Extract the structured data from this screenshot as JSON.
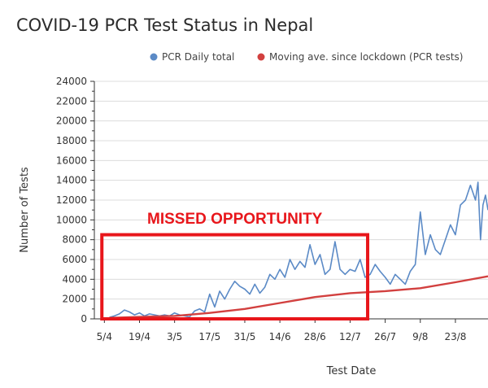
{
  "colors": {
    "daily": "#5b8ac6",
    "moving": "#d2403f",
    "annotation": "#e8161b",
    "grid": "#dcdcdc",
    "axis": "#333333"
  },
  "chart_data": {
    "type": "line",
    "title": "COVID-19 PCR Test Status in Nepal",
    "xlabel": "Test Date",
    "ylabel": "Number of Tests",
    "ylim": [
      0,
      24000
    ],
    "xlim": [
      "2020-04-01",
      "2020-09-05"
    ],
    "grid": true,
    "legend_position": "top-right",
    "yticks": [
      "0",
      "2000",
      "4000",
      "6000",
      "8000",
      "10000",
      "12000",
      "14000",
      "16000",
      "18000",
      "20000",
      "22000",
      "24000"
    ],
    "xtick_dates": [
      "2020-04-05",
      "2020-04-19",
      "2020-05-03",
      "2020-05-17",
      "2020-05-31",
      "2020-06-14",
      "2020-06-28",
      "2020-07-12",
      "2020-07-26",
      "2020-08-09",
      "2020-08-23"
    ],
    "xtick_labels": [
      "5/4",
      "19/4",
      "3/5",
      "17/5",
      "31/5",
      "14/6",
      "28/6",
      "12/7",
      "26/7",
      "9/8",
      "23/8"
    ],
    "series": [
      {
        "name": "PCR Daily total",
        "points": [
          [
            "2020-04-07",
            150
          ],
          [
            "2020-04-09",
            300
          ],
          [
            "2020-04-11",
            500
          ],
          [
            "2020-04-13",
            900
          ],
          [
            "2020-04-15",
            700
          ],
          [
            "2020-04-17",
            400
          ],
          [
            "2020-04-19",
            600
          ],
          [
            "2020-04-21",
            300
          ],
          [
            "2020-04-23",
            500
          ],
          [
            "2020-04-25",
            400
          ],
          [
            "2020-04-27",
            300
          ],
          [
            "2020-04-29",
            400
          ],
          [
            "2020-05-01",
            300
          ],
          [
            "2020-05-03",
            600
          ],
          [
            "2020-05-05",
            400
          ],
          [
            "2020-05-07",
            300
          ],
          [
            "2020-05-09",
            200
          ],
          [
            "2020-05-11",
            800
          ],
          [
            "2020-05-13",
            1000
          ],
          [
            "2020-05-15",
            700
          ],
          [
            "2020-05-17",
            2500
          ],
          [
            "2020-05-19",
            1200
          ],
          [
            "2020-05-21",
            2800
          ],
          [
            "2020-05-23",
            2000
          ],
          [
            "2020-05-25",
            3000
          ],
          [
            "2020-05-27",
            3800
          ],
          [
            "2020-05-29",
            3300
          ],
          [
            "2020-05-31",
            3000
          ],
          [
            "2020-06-02",
            2500
          ],
          [
            "2020-06-04",
            3500
          ],
          [
            "2020-06-06",
            2600
          ],
          [
            "2020-06-08",
            3200
          ],
          [
            "2020-06-10",
            4500
          ],
          [
            "2020-06-12",
            4000
          ],
          [
            "2020-06-14",
            5000
          ],
          [
            "2020-06-16",
            4200
          ],
          [
            "2020-06-18",
            6000
          ],
          [
            "2020-06-20",
            5000
          ],
          [
            "2020-06-22",
            5800
          ],
          [
            "2020-06-24",
            5200
          ],
          [
            "2020-06-26",
            7500
          ],
          [
            "2020-06-28",
            5500
          ],
          [
            "2020-06-30",
            6500
          ],
          [
            "2020-07-02",
            4500
          ],
          [
            "2020-07-04",
            5000
          ],
          [
            "2020-07-06",
            7800
          ],
          [
            "2020-07-08",
            5000
          ],
          [
            "2020-07-10",
            4500
          ],
          [
            "2020-07-12",
            5000
          ],
          [
            "2020-07-14",
            4800
          ],
          [
            "2020-07-16",
            6000
          ],
          [
            "2020-07-18",
            4200
          ],
          [
            "2020-07-20",
            4500
          ],
          [
            "2020-07-22",
            5500
          ],
          [
            "2020-07-24",
            4800
          ],
          [
            "2020-07-26",
            4200
          ],
          [
            "2020-07-28",
            3500
          ],
          [
            "2020-07-30",
            4500
          ],
          [
            "2020-08-01",
            4000
          ],
          [
            "2020-08-03",
            3500
          ],
          [
            "2020-08-05",
            4800
          ],
          [
            "2020-08-07",
            5500
          ],
          [
            "2020-08-09",
            10800
          ],
          [
            "2020-08-11",
            6500
          ],
          [
            "2020-08-13",
            8500
          ],
          [
            "2020-08-15",
            7000
          ],
          [
            "2020-08-17",
            6500
          ],
          [
            "2020-08-19",
            8000
          ],
          [
            "2020-08-21",
            9500
          ],
          [
            "2020-08-23",
            8500
          ],
          [
            "2020-08-25",
            11500
          ],
          [
            "2020-08-27",
            12000
          ],
          [
            "2020-08-29",
            13500
          ],
          [
            "2020-08-31",
            12000
          ],
          [
            "2020-09-01",
            13800
          ],
          [
            "2020-09-02",
            8000
          ],
          [
            "2020-09-03",
            11500
          ],
          [
            "2020-09-04",
            12500
          ],
          [
            "2020-09-05",
            11000
          ]
        ]
      },
      {
        "name": "Moving ave. since lockdown (PCR tests)",
        "points": [
          [
            "2020-04-07",
            100
          ],
          [
            "2020-04-19",
            200
          ],
          [
            "2020-05-03",
            300
          ],
          [
            "2020-05-17",
            600
          ],
          [
            "2020-05-31",
            1000
          ],
          [
            "2020-06-14",
            1600
          ],
          [
            "2020-06-28",
            2200
          ],
          [
            "2020-07-12",
            2600
          ],
          [
            "2020-07-26",
            2800
          ],
          [
            "2020-08-09",
            3100
          ],
          [
            "2020-08-23",
            3700
          ],
          [
            "2020-09-05",
            4300
          ]
        ]
      }
    ],
    "annotations": [
      {
        "text": "MISSED OPPORTUNITY",
        "box_x": [
          "2020-04-04",
          "2020-07-19"
        ],
        "box_y": [
          0,
          8500
        ]
      }
    ]
  }
}
